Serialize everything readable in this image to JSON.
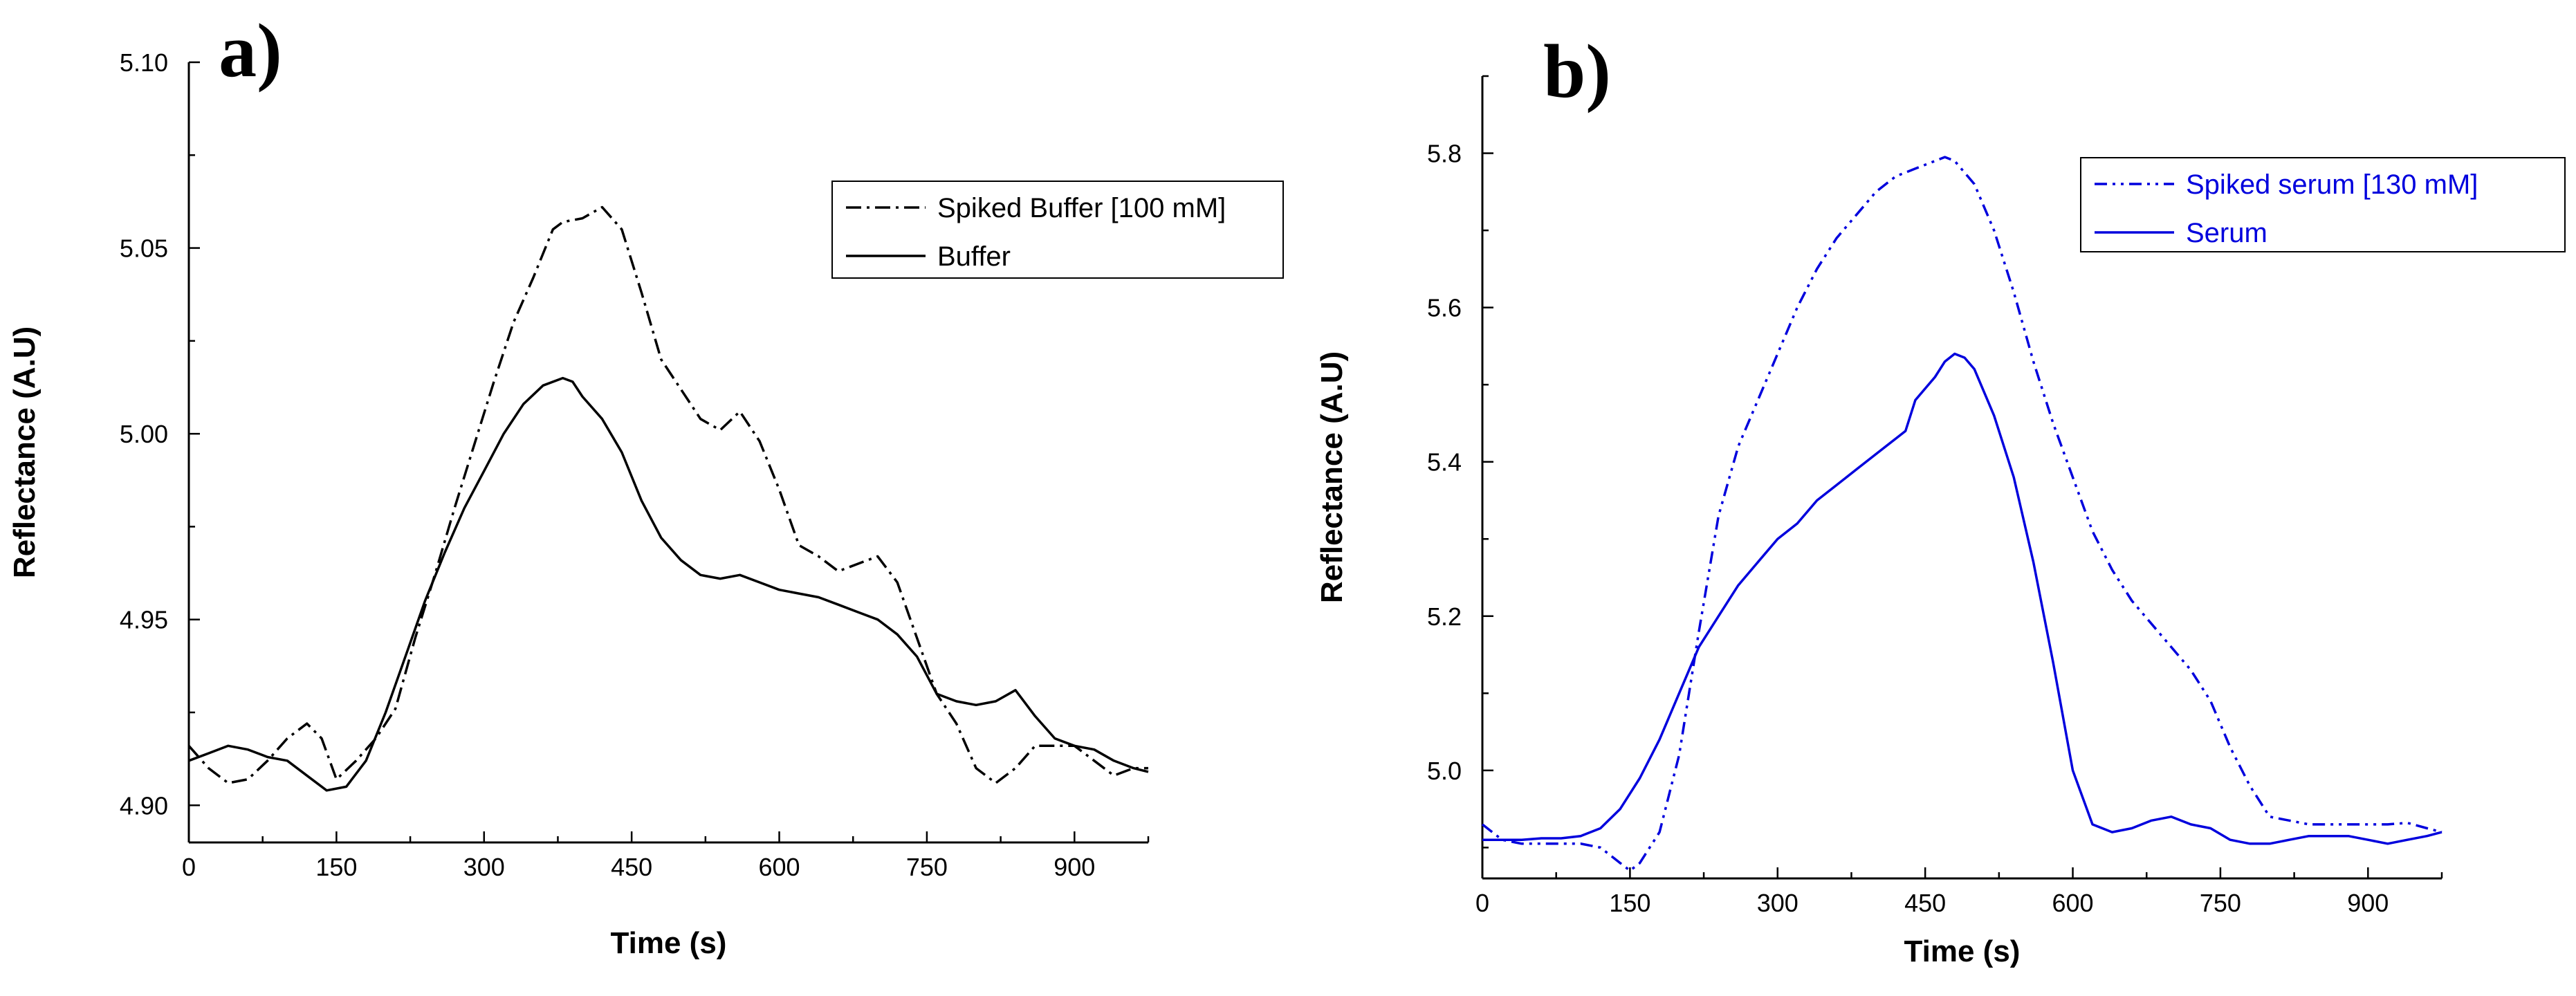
{
  "chart_data": [
    {
      "type": "line",
      "panel_label": "a)",
      "title": "",
      "xlabel": "Time (s)",
      "ylabel": "Reflectance (A.U)",
      "xlim": [
        0,
        975
      ],
      "ylim": [
        4.89,
        5.1
      ],
      "xticks": [
        0,
        150,
        300,
        450,
        600,
        750,
        900
      ],
      "yticks": [
        4.9,
        4.95,
        5.0,
        5.05,
        5.1
      ],
      "ytick_labels": [
        "4.90",
        "4.95",
        "5.00",
        "5.05",
        "5.10"
      ],
      "legend_position": "top-right",
      "color": "#000000",
      "series": [
        {
          "name": "Spiked Buffer [100 mM]",
          "style": "dash-dot",
          "x": [
            0,
            20,
            40,
            60,
            80,
            100,
            120,
            135,
            150,
            170,
            190,
            210,
            230,
            250,
            270,
            290,
            310,
            330,
            350,
            370,
            380,
            400,
            420,
            440,
            460,
            480,
            500,
            520,
            540,
            560,
            580,
            600,
            620,
            640,
            660,
            680,
            700,
            720,
            740,
            760,
            780,
            800,
            820,
            840,
            860,
            880,
            900,
            920,
            940,
            960,
            975
          ],
          "y": [
            4.916,
            4.91,
            4.906,
            4.907,
            4.912,
            4.918,
            4.922,
            4.918,
            4.907,
            4.912,
            4.918,
            4.926,
            4.945,
            4.962,
            4.98,
            4.997,
            5.014,
            5.03,
            5.042,
            5.055,
            5.057,
            5.058,
            5.061,
            5.055,
            5.038,
            5.02,
            5.012,
            5.004,
            5.001,
            5.006,
            4.998,
            4.985,
            4.97,
            4.967,
            4.963,
            4.965,
            4.967,
            4.96,
            4.945,
            4.93,
            4.922,
            4.91,
            4.906,
            4.91,
            4.916,
            4.916,
            4.916,
            4.912,
            4.908,
            4.91,
            4.91
          ]
        },
        {
          "name": "Buffer",
          "style": "solid",
          "x": [
            0,
            20,
            40,
            60,
            80,
            100,
            120,
            140,
            160,
            180,
            200,
            220,
            240,
            260,
            280,
            300,
            320,
            340,
            360,
            380,
            390,
            400,
            420,
            440,
            460,
            480,
            500,
            520,
            540,
            560,
            580,
            600,
            620,
            640,
            660,
            680,
            700,
            720,
            740,
            760,
            780,
            800,
            820,
            840,
            860,
            880,
            900,
            920,
            940,
            960,
            975
          ],
          "y": [
            4.912,
            4.914,
            4.916,
            4.915,
            4.913,
            4.912,
            4.908,
            4.904,
            4.905,
            4.912,
            4.925,
            4.94,
            4.955,
            4.968,
            4.98,
            4.99,
            5.0,
            5.008,
            5.013,
            5.015,
            5.014,
            5.01,
            5.004,
            4.995,
            4.982,
            4.972,
            4.966,
            4.962,
            4.961,
            4.962,
            4.96,
            4.958,
            4.957,
            4.956,
            4.954,
            4.952,
            4.95,
            4.946,
            4.94,
            4.93,
            4.928,
            4.927,
            4.928,
            4.931,
            4.924,
            4.918,
            4.916,
            4.915,
            4.912,
            4.91,
            4.909
          ]
        }
      ]
    },
    {
      "type": "line",
      "panel_label": "b)",
      "title": "",
      "xlabel": "Time (s)",
      "ylabel": "Reflectance (A.U)",
      "xlim": [
        0,
        975
      ],
      "ylim": [
        4.86,
        5.9
      ],
      "xticks": [
        0,
        150,
        300,
        450,
        600,
        750,
        900
      ],
      "yticks": [
        5.0,
        5.2,
        5.4,
        5.6,
        5.8
      ],
      "ytick_labels": [
        "5.0",
        "5.2",
        "5.4",
        "5.6",
        "5.8"
      ],
      "legend_position": "top-right",
      "color": "#0000dd",
      "series": [
        {
          "name": "Spiked serum [130 mM]",
          "style": "dash-dot-dot",
          "x": [
            0,
            20,
            40,
            60,
            80,
            100,
            120,
            140,
            150,
            160,
            180,
            200,
            220,
            240,
            260,
            280,
            300,
            320,
            340,
            360,
            380,
            400,
            420,
            440,
            460,
            470,
            480,
            500,
            520,
            540,
            560,
            580,
            600,
            620,
            640,
            660,
            680,
            700,
            720,
            740,
            760,
            780,
            800,
            820,
            840,
            860,
            880,
            900,
            920,
            940,
            960,
            975
          ],
          "y": [
            4.93,
            4.91,
            4.905,
            4.905,
            4.905,
            4.905,
            4.9,
            4.88,
            4.87,
            4.88,
            4.92,
            5.02,
            5.18,
            5.33,
            5.42,
            5.48,
            5.54,
            5.6,
            5.65,
            5.69,
            5.72,
            5.75,
            5.77,
            5.78,
            5.79,
            5.795,
            5.79,
            5.76,
            5.7,
            5.62,
            5.53,
            5.45,
            5.38,
            5.31,
            5.26,
            5.22,
            5.19,
            5.16,
            5.13,
            5.09,
            5.03,
            4.98,
            4.94,
            4.935,
            4.93,
            4.93,
            4.93,
            4.93,
            4.93,
            4.932,
            4.925,
            4.92
          ]
        },
        {
          "name": "Serum",
          "style": "solid",
          "x": [
            0,
            20,
            40,
            60,
            80,
            100,
            120,
            140,
            160,
            180,
            200,
            220,
            240,
            260,
            280,
            300,
            320,
            340,
            360,
            380,
            400,
            420,
            430,
            440,
            460,
            470,
            480,
            490,
            500,
            520,
            540,
            560,
            580,
            600,
            620,
            640,
            660,
            680,
            700,
            720,
            740,
            760,
            780,
            800,
            820,
            840,
            860,
            880,
            900,
            920,
            940,
            960,
            975
          ],
          "y": [
            4.91,
            4.91,
            4.91,
            4.912,
            4.912,
            4.915,
            4.925,
            4.95,
            4.99,
            5.04,
            5.1,
            5.16,
            5.2,
            5.24,
            5.27,
            5.3,
            5.32,
            5.35,
            5.37,
            5.39,
            5.41,
            5.43,
            5.44,
            5.48,
            5.51,
            5.53,
            5.54,
            5.535,
            5.52,
            5.46,
            5.38,
            5.27,
            5.14,
            5.0,
            4.93,
            4.92,
            4.925,
            4.935,
            4.94,
            4.93,
            4.925,
            4.91,
            4.905,
            4.905,
            4.91,
            4.915,
            4.915,
            4.915,
            4.91,
            4.905,
            4.91,
            4.915,
            4.92
          ]
        }
      ]
    }
  ]
}
